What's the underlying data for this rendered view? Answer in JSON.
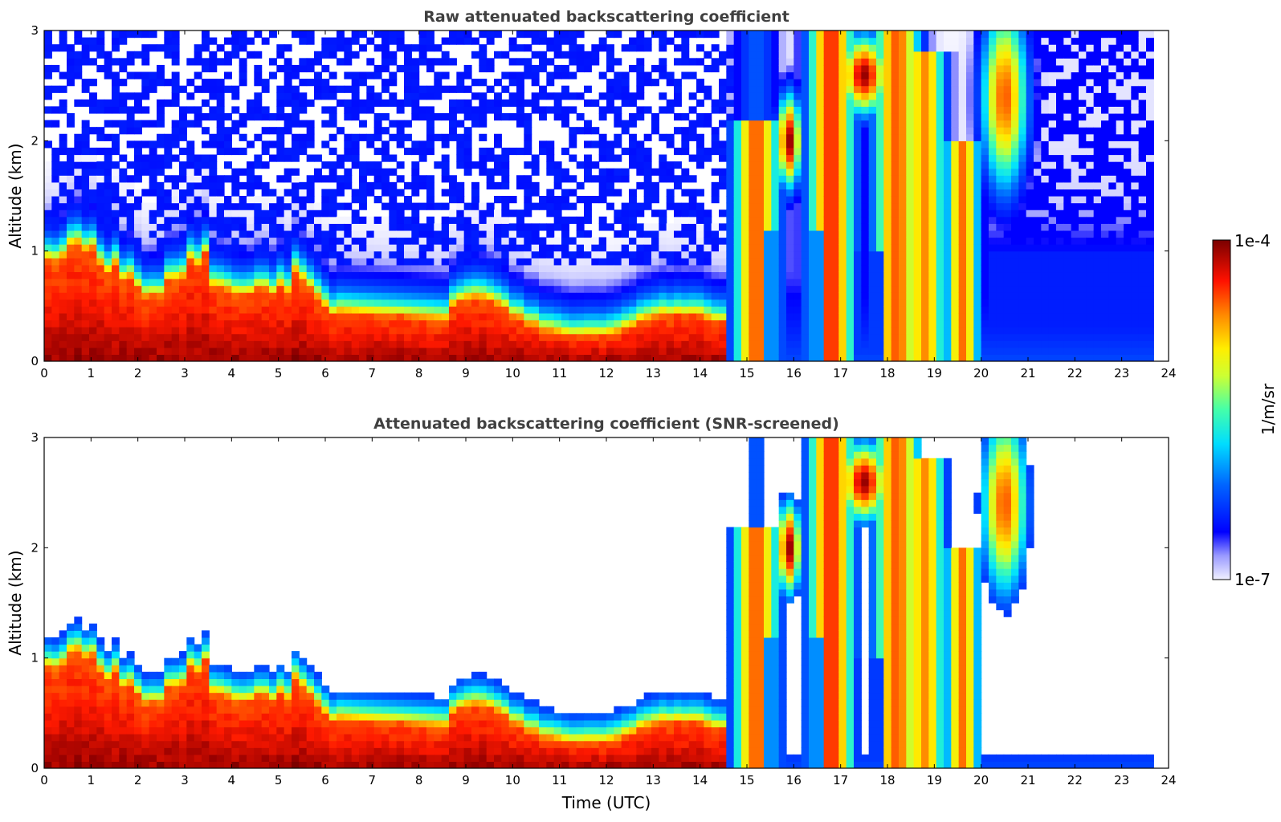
{
  "chart_data": [
    {
      "type": "heatmap",
      "title": "Raw attenuated backscattering coefficient",
      "xlabel": "",
      "ylabel": "Altitude (km)",
      "xlim": [
        0,
        24
      ],
      "ylim": [
        0,
        3
      ],
      "x_ticks": [
        "0",
        "1",
        "2",
        "3",
        "4",
        "5",
        "6",
        "7",
        "8",
        "9",
        "10",
        "11",
        "12",
        "13",
        "14",
        "15",
        "16",
        "17",
        "18",
        "19",
        "20",
        "21",
        "22",
        "23",
        "24"
      ],
      "y_ticks": [
        "0",
        "1",
        "2",
        "3"
      ],
      "data_end_hour": 23.65,
      "screened": false
    },
    {
      "type": "heatmap",
      "title": "Attenuated backscattering coefficient (SNR-screened)",
      "xlabel": "Time (UTC)",
      "ylabel": "Altitude (km)",
      "xlim": [
        0,
        24
      ],
      "ylim": [
        0,
        3
      ],
      "x_ticks": [
        "0",
        "1",
        "2",
        "3",
        "4",
        "5",
        "6",
        "7",
        "8",
        "9",
        "10",
        "11",
        "12",
        "13",
        "14",
        "15",
        "16",
        "17",
        "18",
        "19",
        "20",
        "21",
        "22",
        "23",
        "24"
      ],
      "y_ticks": [
        "0",
        "1",
        "2",
        "3"
      ],
      "data_end_hour": 23.65,
      "screened": true
    }
  ],
  "colorbar": {
    "max_label": "1e-4",
    "min_label": "1e-7",
    "unit_label": "1/m/sr",
    "colormap": [
      "#ffffff",
      "#e8e8ff",
      "#b8b8ff",
      "#7a7aff",
      "#0000ff",
      "#0055ff",
      "#00aaff",
      "#00ffff",
      "#55ff99",
      "#aaff55",
      "#ffff00",
      "#ffaa00",
      "#ff5500",
      "#ff0000",
      "#aa0000",
      "#770000"
    ]
  }
}
